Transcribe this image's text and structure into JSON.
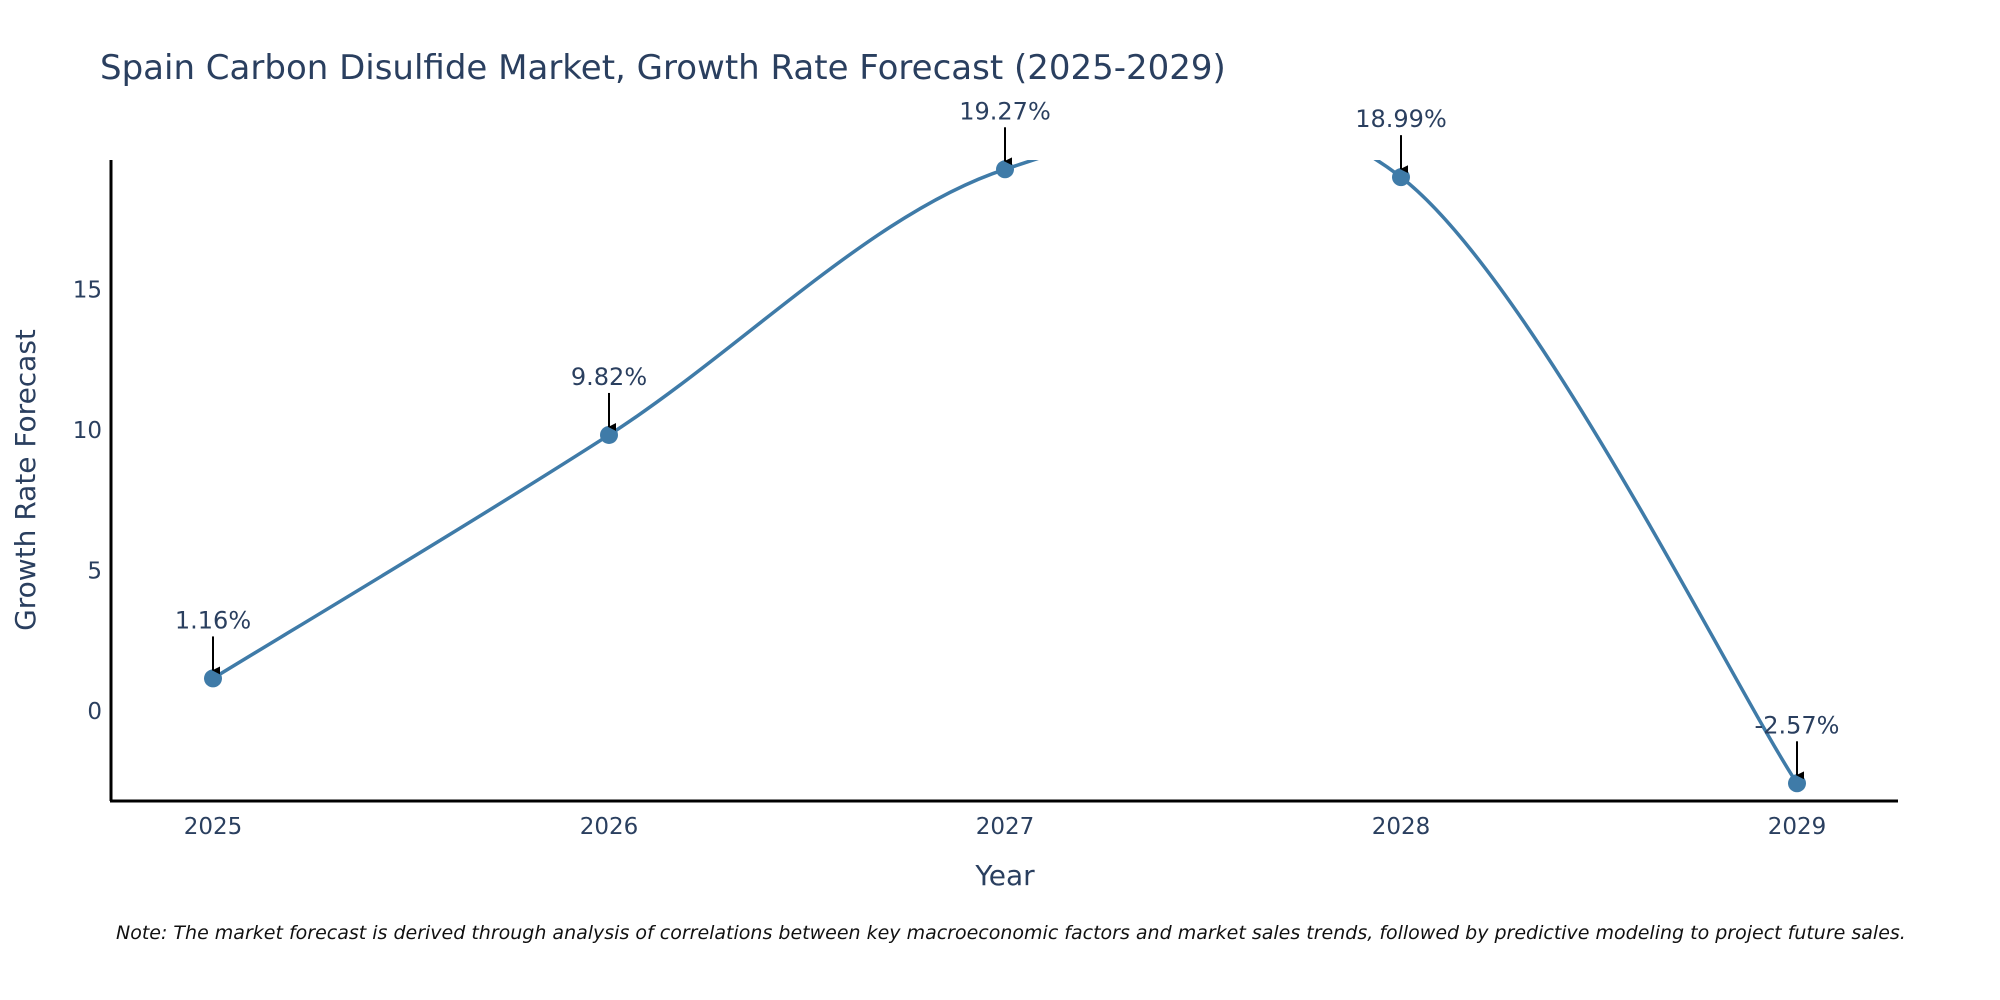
{
  "chart_data": {
    "type": "line",
    "title": "Spain Carbon Disulfide Market, Growth Rate Forecast (2025-2029)",
    "xlabel": "Year",
    "ylabel": "Growth Rate Forecast",
    "categories": [
      "2025",
      "2026",
      "2027",
      "2028",
      "2029"
    ],
    "series": [
      {
        "name": "Growth Rate Forecast",
        "values": [
          1.16,
          9.82,
          19.27,
          18.99,
          -2.57
        ],
        "labels": [
          "1.16%",
          "9.82%",
          "19.27%",
          "18.99%",
          "-2.57%"
        ]
      }
    ],
    "ylim": [
      -3.2,
      19.6
    ],
    "yticks": [
      0,
      5,
      10,
      15
    ],
    "ytick_labels": [
      "0",
      "5",
      "10",
      "15"
    ],
    "grid": false,
    "line_shape": "spline",
    "line_color": "#3f7ba8",
    "marker_color": "#3f7ba8",
    "note": "Note: The market forecast is derived through analysis of correlations between key macroeconomic factors and market sales trends, followed by predictive modeling to project future sales."
  }
}
